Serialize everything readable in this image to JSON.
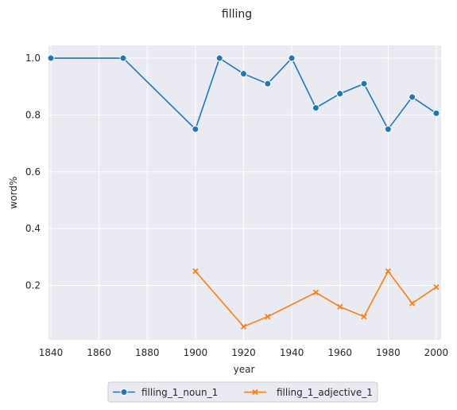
{
  "chart_data": {
    "type": "line",
    "title": "filling",
    "xlabel": "year",
    "ylabel": "word%",
    "xlim": [
      1839,
      2002
    ],
    "ylim": [
      0.008,
      1.045
    ],
    "xticks": [
      1840,
      1860,
      1880,
      1900,
      1920,
      1940,
      1960,
      1980,
      2000
    ],
    "yticks": [
      0.2,
      0.4,
      0.6,
      0.8,
      1.0
    ],
    "ytick_labels": [
      "0.2",
      "0.4",
      "0.6",
      "0.8",
      "1.0"
    ],
    "grid": true,
    "legend_position": "bottom-center",
    "series": [
      {
        "name": "filling_1_noun_1",
        "color": "#1f77b4",
        "marker": "circle",
        "x": [
          1840,
          1870,
          1900,
          1910,
          1920,
          1930,
          1940,
          1950,
          1960,
          1970,
          1980,
          1990,
          2000
        ],
        "y": [
          1.0,
          1.0,
          0.75,
          1.0,
          0.945,
          0.91,
          1.0,
          0.825,
          0.875,
          0.91,
          0.75,
          0.863,
          0.806
        ]
      },
      {
        "name": "filling_1_adjective_1",
        "color": "#ff7f0e",
        "marker": "x",
        "x": [
          1900,
          1920,
          1930,
          1950,
          1960,
          1970,
          1980,
          1990,
          2000
        ],
        "y": [
          0.25,
          0.055,
          0.09,
          0.175,
          0.125,
          0.09,
          0.25,
          0.137,
          0.194
        ]
      }
    ]
  }
}
